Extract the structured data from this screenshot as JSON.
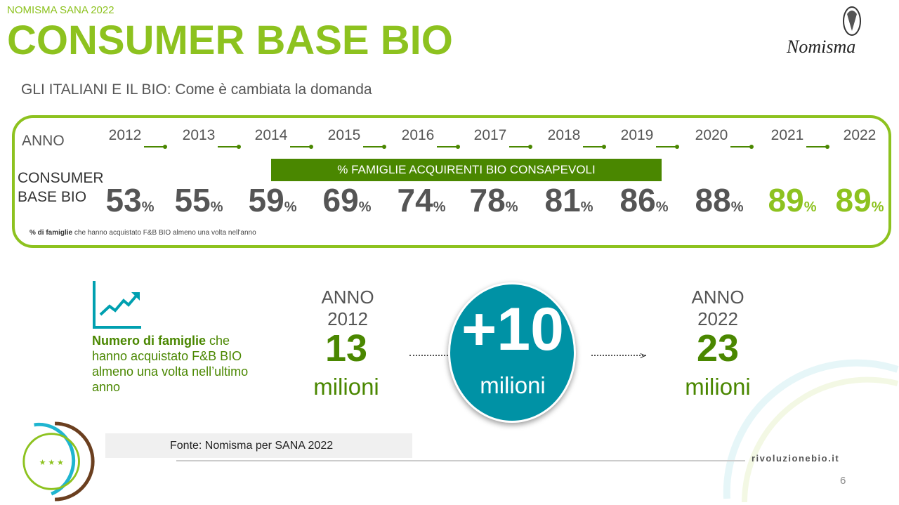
{
  "header": {
    "kicker": "NOMISMA SANA 2022",
    "title": "CONSUMER BASE BIO",
    "logo_text": "Nomisma",
    "subtitle": "GLI ITALIANI E IL BIO: Come è cambiata la domanda"
  },
  "timeline": {
    "anno_label": "ANNO",
    "consumer_label_1": "CONSUMER",
    "consumer_label_2": "BASE BIO",
    "banner": "% FAMIGLIE ACQUIRENTI BIO CONSAPEVOLI",
    "years": [
      "2012",
      "2013",
      "2014",
      "2015",
      "2016",
      "2017",
      "2018",
      "2019",
      "2020",
      "2021",
      "2022"
    ],
    "values": [
      "53",
      "55",
      "59",
      "69",
      "74",
      "78",
      "81",
      "86",
      "88",
      "89",
      "89"
    ],
    "unit": "%",
    "note_bold": "% di famiglie",
    "note_rest": " che hanno acquistato F&B BIO almeno una volta nell'anno"
  },
  "families": {
    "text_bold": "Numero di famiglie",
    "text_rest": " che hanno acquistato F&B BIO almeno una volta nell’ultimo anno",
    "start": {
      "anno": "ANNO",
      "year": "2012",
      "value": "13",
      "unit": "milioni"
    },
    "delta": {
      "value": "+10",
      "unit": "milioni"
    },
    "end": {
      "anno": "ANNO",
      "year": "2022",
      "value": "23",
      "unit": "milioni"
    }
  },
  "footer": {
    "source": "Fonte: Nomisma per SANA 2022",
    "site": "rivoluzionebio.it",
    "page": "6"
  },
  "colors": {
    "green_light": "#8dc21f",
    "green_dark": "#4a8700",
    "teal": "#0092a5"
  }
}
